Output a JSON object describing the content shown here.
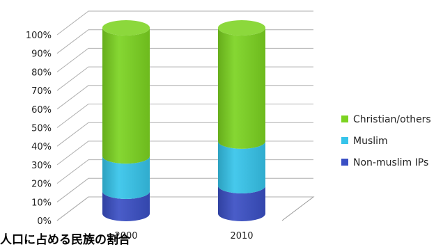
{
  "caption": "人口に占める民族の割合",
  "chart_data": {
    "type": "bar",
    "stacked": true,
    "style": "3d-cylinder",
    "categories": [
      "2000",
      "2010"
    ],
    "series": [
      {
        "name": "Non-muslim IPs",
        "values": [
          12,
          15
        ],
        "color": "#3a4fc4"
      },
      {
        "name": "Muslim",
        "values": [
          19,
          24
        ],
        "color": "#36c4ea"
      },
      {
        "name": "Christian/others",
        "values": [
          69,
          61
        ],
        "color": "#7cd321"
      }
    ],
    "y_ticks": [
      "0%",
      "10%",
      "20%",
      "30%",
      "40%",
      "50%",
      "60%",
      "70%",
      "80%",
      "90%",
      "100%"
    ],
    "ylim": [
      0,
      100
    ],
    "grid": true,
    "legend_position": "right"
  }
}
